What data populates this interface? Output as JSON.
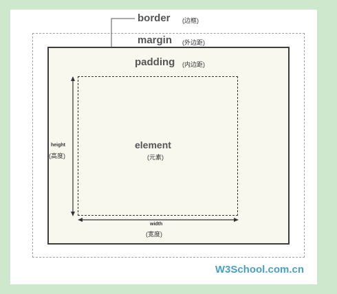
{
  "labels": {
    "border": "border",
    "border_cn": "(边框)",
    "margin": "margin",
    "margin_cn": "(外边距)",
    "padding": "padding",
    "padding_cn": "(内边距)",
    "element": "element",
    "element_cn": "(元素)",
    "height": "height",
    "height_cn": "(高度)",
    "width": "width",
    "width_cn": "(宽度)"
  },
  "brand": "W3School.com.cn",
  "colors": {
    "page_bg": "#cde8cd",
    "content_bg": "#f9f8ef",
    "brand": "#4aa0c4",
    "label": "#555555"
  }
}
